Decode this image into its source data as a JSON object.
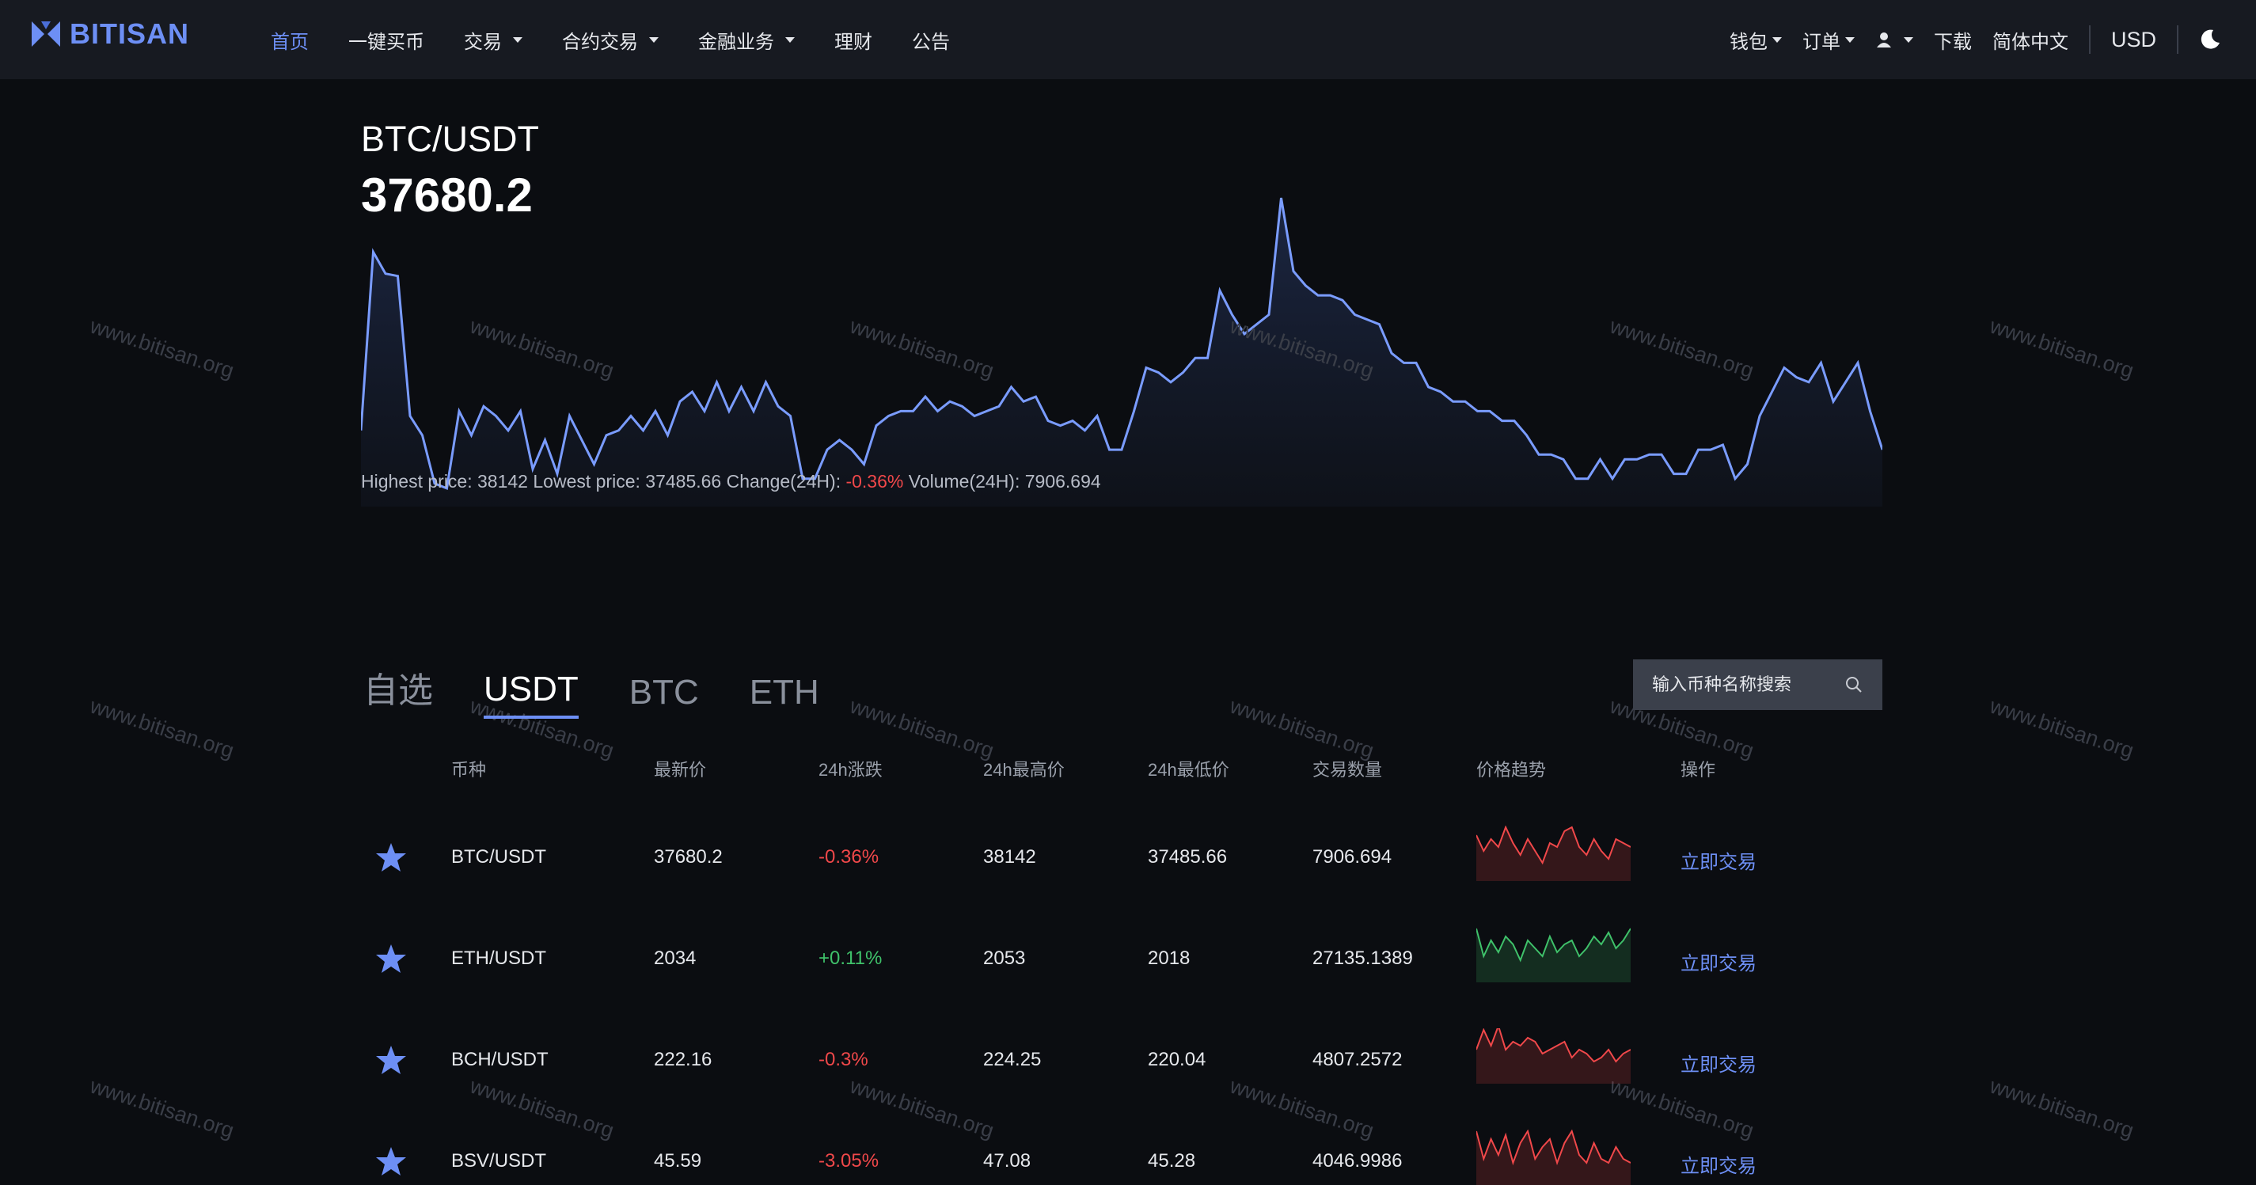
{
  "nav": {
    "logo": "BITISAN",
    "items": [
      {
        "label": "首页",
        "active": true,
        "dropdown": false
      },
      {
        "label": "一键买币",
        "active": false,
        "dropdown": false
      },
      {
        "label": "交易",
        "active": false,
        "dropdown": true
      },
      {
        "label": "合约交易",
        "active": false,
        "dropdown": true
      },
      {
        "label": "金融业务",
        "active": false,
        "dropdown": true
      },
      {
        "label": "理财",
        "active": false,
        "dropdown": false
      },
      {
        "label": "公告",
        "active": false,
        "dropdown": false
      }
    ],
    "right": {
      "wallet": "钱包",
      "orders": "订单",
      "download": "下载",
      "language": "简体中文",
      "currency": "USD"
    }
  },
  "ticker": {
    "pair": "BTC/USDT",
    "price": "37680.2",
    "stats": {
      "high_label": "Highest price: ",
      "high": "38142",
      "low_label": " Lowest price: ",
      "low": "37485.66",
      "change_label": " Change(24H): ",
      "change": "-0.36%",
      "volume_label": " Volume(24H): ",
      "volume": "7906.694"
    }
  },
  "watermark": "www.bitisan.org",
  "chart_data": {
    "type": "area",
    "y": [
      37660,
      38030,
      37985,
      37980,
      37690,
      37650,
      37550,
      37540,
      37700,
      37650,
      37710,
      37690,
      37660,
      37700,
      37580,
      37640,
      37570,
      37690,
      37640,
      37590,
      37650,
      37660,
      37690,
      37660,
      37700,
      37650,
      37720,
      37740,
      37700,
      37760,
      37700,
      37750,
      37700,
      37760,
      37710,
      37690,
      37560,
      37560,
      37620,
      37640,
      37620,
      37590,
      37670,
      37690,
      37700,
      37700,
      37730,
      37700,
      37720,
      37710,
      37690,
      37700,
      37710,
      37750,
      37720,
      37730,
      37680,
      37670,
      37680,
      37660,
      37690,
      37620,
      37620,
      37700,
      37790,
      37780,
      37760,
      37780,
      37810,
      37810,
      37950,
      37900,
      37860,
      37880,
      37900,
      38142,
      37990,
      37960,
      37940,
      37940,
      37930,
      37900,
      37890,
      37880,
      37820,
      37800,
      37800,
      37750,
      37740,
      37720,
      37720,
      37700,
      37700,
      37680,
      37680,
      37650,
      37610,
      37610,
      37600,
      37560,
      37560,
      37600,
      37560,
      37600,
      37600,
      37610,
      37610,
      37570,
      37570,
      37620,
      37620,
      37630,
      37560,
      37590,
      37690,
      37740,
      37790,
      37770,
      37760,
      37800,
      37720,
      37760,
      37800,
      37700,
      37620
    ],
    "ylim": [
      37485.66,
      38142
    ]
  },
  "market_tabs": [
    "自选",
    "USDT",
    "BTC",
    "ETH"
  ],
  "active_tab": 1,
  "search": {
    "placeholder": "输入币种名称搜索"
  },
  "table": {
    "columns": [
      "币种",
      "最新价",
      "24h涨跌",
      "24h最高价",
      "24h最低价",
      "交易数量",
      "价格趋势",
      "操作"
    ],
    "rows": [
      {
        "pair": "BTC/USDT",
        "price": "37680.2",
        "change": "-0.36%",
        "high": "38142",
        "low": "37485.66",
        "volume": "7906.694",
        "action": "立即交易",
        "trend": "down",
        "spark": [
          60,
          40,
          55,
          45,
          70,
          50,
          35,
          55,
          40,
          25,
          50,
          45,
          65,
          70,
          45,
          35,
          55,
          40,
          30,
          55,
          50,
          45
        ]
      },
      {
        "pair": "ETH/USDT",
        "price": "2034",
        "change": "+0.11%",
        "high": "2053",
        "low": "2018",
        "volume": "27135.1389",
        "action": "立即交易",
        "trend": "up",
        "spark": [
          70,
          35,
          55,
          40,
          60,
          50,
          30,
          55,
          45,
          35,
          60,
          40,
          50,
          55,
          35,
          45,
          60,
          50,
          65,
          45,
          55,
          70
        ]
      },
      {
        "pair": "BCH/USDT",
        "price": "222.16",
        "change": "-0.3%",
        "high": "224.25",
        "low": "220.04",
        "volume": "4807.2572",
        "action": "立即交易",
        "trend": "down",
        "spark": [
          45,
          70,
          50,
          75,
          45,
          55,
          50,
          60,
          55,
          40,
          45,
          50,
          55,
          35,
          45,
          40,
          30,
          35,
          45,
          30,
          40,
          45
        ]
      },
      {
        "pair": "BSV/USDT",
        "price": "45.59",
        "change": "-3.05%",
        "high": "47.08",
        "low": "45.28",
        "volume": "4046.9986",
        "action": "立即交易",
        "trend": "down",
        "spark": [
          70,
          35,
          60,
          40,
          65,
          30,
          55,
          70,
          35,
          50,
          60,
          30,
          55,
          70,
          40,
          30,
          55,
          35,
          30,
          50,
          35,
          30
        ]
      }
    ]
  }
}
